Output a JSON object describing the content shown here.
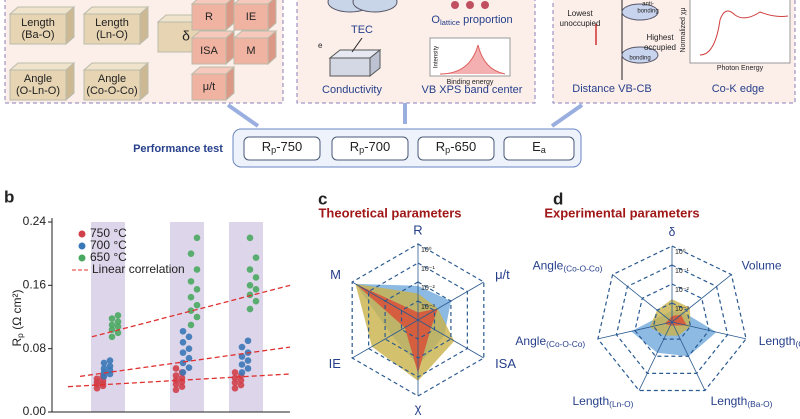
{
  "panel_a": {
    "structural_params": [
      [
        "Length",
        "(Ba-O)"
      ],
      [
        "Length",
        "(Ln-O)"
      ],
      [
        "δ"
      ],
      [
        "Angle",
        "(O-Ln-O)"
      ],
      [
        "Angle",
        "(Co-O-Co)"
      ]
    ],
    "theoretical_params": [
      "R",
      "IE",
      "ISA",
      "M",
      "μ/t"
    ],
    "experimental_items": {
      "tec": "TEC",
      "conductivity": "Conductivity",
      "electron": "e",
      "olattice": {
        "main": "O",
        "sub": "lattice",
        "rest": " proportion"
      },
      "vb_xps": "VB XPS band center",
      "xps_y": "Intensity",
      "xps_x": "Binding energy"
    },
    "band": {
      "anti": [
        "anti-",
        "bonding"
      ],
      "lowest": [
        "Lowest",
        "unoccupied"
      ],
      "highest": [
        "Highest",
        "occupied"
      ],
      "bonding": "bonding",
      "distance": "Distance VB-CB"
    },
    "xas": {
      "y": "Normalized χμ",
      "x": "Photon Energy",
      "title": "Co-K edge"
    }
  },
  "performance": {
    "label": "Performance test",
    "items": [
      {
        "main": "R",
        "sub": "p",
        "rest": "-750"
      },
      {
        "main": "R",
        "sub": "p",
        "rest": "-700"
      },
      {
        "main": "R",
        "sub": "p",
        "rest": "-650"
      },
      {
        "main": "E",
        "sub": "a"
      }
    ]
  },
  "chart_data": [
    {
      "type": "scatter",
      "panel": "b",
      "ylabel": {
        "main": "R",
        "sub": "p",
        "rest": " (Ω cm²)"
      },
      "ylim": [
        0,
        0.24
      ],
      "yticks": [
        {
          "value": 0,
          "label": "0.00"
        },
        {
          "value": 0.08,
          "label": "0.08"
        },
        {
          "value": 0.16,
          "label": "0.16"
        },
        {
          "value": 0.24,
          "label": "0.24"
        }
      ],
      "categories": [
        null,
        null,
        null
      ],
      "series": [
        {
          "name": "750 °C",
          "color": "#d0404a",
          "values": [
            [
              0.03,
              0.033,
              0.035,
              0.036,
              0.038,
              0.04,
              0.042,
              0.045
            ],
            [
              0.028,
              0.032,
              0.035,
              0.038,
              0.04,
              0.043,
              0.046,
              0.05,
              0.055
            ],
            [
              0.03,
              0.034,
              0.037,
              0.04,
              0.043,
              0.046,
              0.05
            ]
          ]
        },
        {
          "name": "700 °C",
          "color": "#3a78b8",
          "values": [
            [
              0.045,
              0.048,
              0.05,
              0.053,
              0.055,
              0.058,
              0.062,
              0.065
            ],
            [
              0.05,
              0.056,
              0.062,
              0.068,
              0.075,
              0.08,
              0.088,
              0.095,
              0.102
            ],
            [
              0.05,
              0.055,
              0.06,
              0.065,
              0.07,
              0.075,
              0.082,
              0.09
            ]
          ]
        },
        {
          "name": "650 °C",
          "color": "#4aa860",
          "values": [
            [
              0.095,
              0.1,
              0.104,
              0.108,
              0.11,
              0.114,
              0.118,
              0.122
            ],
            [
              0.11,
              0.12,
              0.128,
              0.135,
              0.145,
              0.155,
              0.165,
              0.18,
              0.2,
              0.22
            ],
            [
              0.13,
              0.14,
              0.148,
              0.155,
              0.16,
              0.17,
              0.18,
              0.195,
              0.22
            ]
          ]
        }
      ],
      "trend": {
        "name": "Linear correlation",
        "color": "#e03030",
        "values": [
          [
            0.032,
            0.048
          ],
          [
            0.045,
            0.082
          ],
          [
            0.095,
            0.16
          ]
        ]
      }
    },
    {
      "type": "radar",
      "panel": "c",
      "title": "Theoretical parameters",
      "axes": [
        "R",
        "μ/t",
        "ISA",
        "χ",
        "IE",
        "M"
      ],
      "log": true,
      "rlim": [
        0.0001,
        1
      ],
      "rticks": [
        {
          "value": 1,
          "label": "10⁰"
        },
        {
          "value": 0.1,
          "label": "10⁻¹"
        },
        {
          "value": 0.01,
          "label": "10⁻²"
        },
        {
          "value": 0.001,
          "label": "10⁻³"
        }
      ],
      "series": [
        {
          "color": "#7fb3e0",
          "values": [
            0.0063,
            0.01,
            0.004,
            0.025,
            0.004,
            0.63
          ]
        },
        {
          "color": "#c9b24a",
          "values": [
            0.0025,
            0.0016,
            0.016,
            0.16,
            0.063,
            0.63
          ]
        },
        {
          "color": "#d6543a",
          "values": [
            0.00025,
            0.0016,
            0.00063,
            0.063,
            0.00063,
            0.63
          ]
        }
      ]
    },
    {
      "type": "radar",
      "panel": "d",
      "title": "Experimental parameters",
      "axes": [
        {
          "text": "δ"
        },
        {
          "text": "Volume"
        },
        {
          "text": "Length",
          "sub": "(Co-O)"
        },
        {
          "text": "Length",
          "sub": "(Ba-O)"
        },
        {
          "text": "Length",
          "sub": "(Ln-O)"
        },
        {
          "text": "Angle",
          "sub": "(Co-O-Co)"
        },
        {
          "text": "Angle",
          "sub": "(Co-O-Co)"
        }
      ],
      "log": true,
      "rlim": [
        0.0001,
        1
      ],
      "rticks": [
        {
          "value": 1,
          "label": "10⁰"
        },
        {
          "value": 0.1,
          "label": "10⁻¹"
        },
        {
          "value": 0.01,
          "label": "10⁻²"
        },
        {
          "value": 0.001,
          "label": "10⁻³"
        }
      ],
      "series": [
        {
          "color": "#7fb3e0",
          "values": [
            0.0004,
            0.00063,
            0.025,
            0.01,
            0.0063,
            0.016,
            0.0004
          ]
        },
        {
          "color": "#c9b24a",
          "values": [
            0.0016,
            0.0016,
            0.001,
            0.00063,
            0.00063,
            0.0016,
            0.001
          ]
        },
        {
          "color": "#d6543a",
          "values": [
            0.00021,
            0.0004,
            0.00063,
            0.00016,
            0.00016,
            0.00025,
            0.00016
          ]
        }
      ]
    }
  ]
}
